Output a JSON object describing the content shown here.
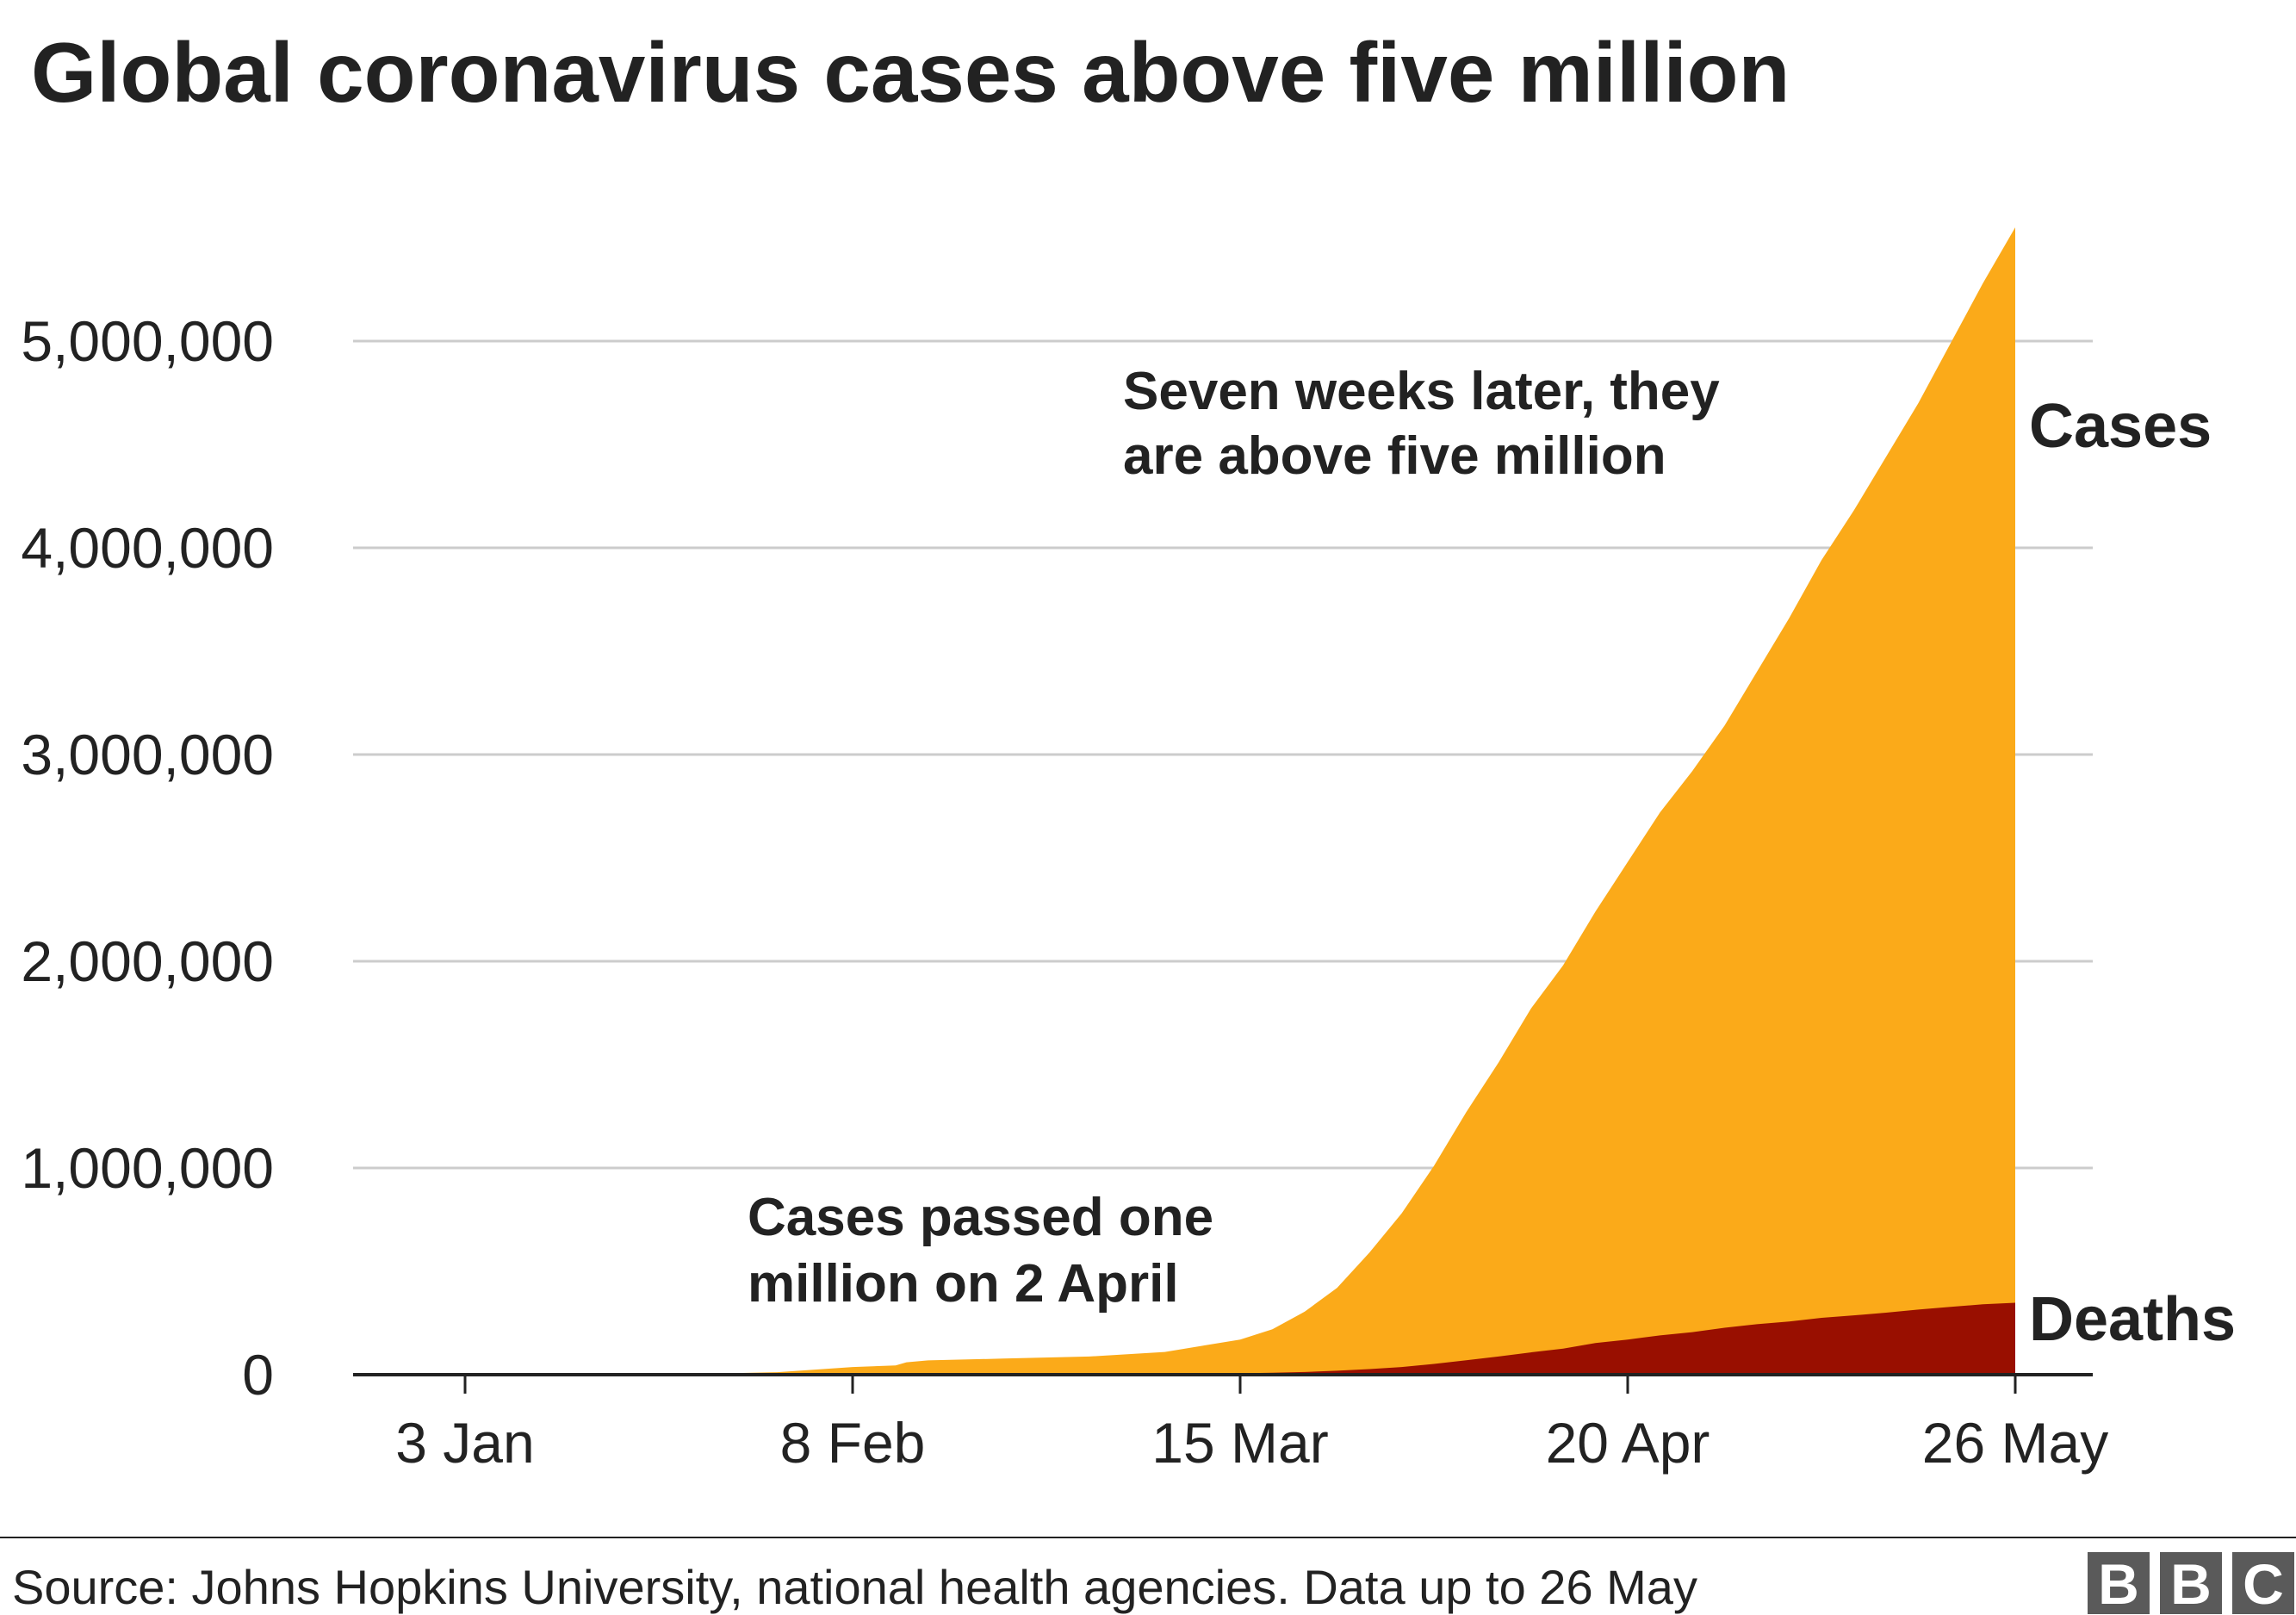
{
  "chart_data": {
    "type": "area",
    "title": "Global coronavirus cases above five million",
    "xlabel": "",
    "ylabel": "",
    "x_ticks": [
      "3 Jan",
      "8 Feb",
      "15 Mar",
      "20 Apr",
      "26 May"
    ],
    "y_ticks": [
      "0",
      "1,000,000",
      "2,000,000",
      "3,000,000",
      "4,000,000",
      "5,000,000"
    ],
    "y_tick_values": [
      0,
      1000000,
      2000000,
      3000000,
      4000000,
      5000000
    ],
    "ylim": [
      0,
      5600000
    ],
    "grid": true,
    "stacked": false,
    "dates": [
      "2020-01-03",
      "2020-01-22",
      "2020-02-01",
      "2020-02-08",
      "2020-02-12",
      "2020-02-13",
      "2020-02-15",
      "2020-02-22",
      "2020-03-01",
      "2020-03-08",
      "2020-03-15",
      "2020-03-18",
      "2020-03-21",
      "2020-03-24",
      "2020-03-27",
      "2020-03-30",
      "2020-04-02",
      "2020-04-05",
      "2020-04-08",
      "2020-04-11",
      "2020-04-14",
      "2020-04-17",
      "2020-04-20",
      "2020-04-23",
      "2020-04-26",
      "2020-04-29",
      "2020-05-02",
      "2020-05-05",
      "2020-05-08",
      "2020-05-11",
      "2020-05-14",
      "2020-05-17",
      "2020-05-20",
      "2020-05-23",
      "2020-05-26"
    ],
    "series": [
      {
        "name": "Cases",
        "color": "#fbaa19",
        "values": [
          0,
          600,
          12000,
          37000,
          45000,
          60000,
          69000,
          78000,
          88000,
          110000,
          170000,
          220000,
          305000,
          420000,
          590000,
          780000,
          1010000,
          1270000,
          1510000,
          1770000,
          1980000,
          2240000,
          2480000,
          2720000,
          2920000,
          3140000,
          3400000,
          3660000,
          3940000,
          4180000,
          4440000,
          4700000,
          4990000,
          5280000,
          5550000
        ]
      },
      {
        "name": "Deaths",
        "color": "#990f00",
        "values": [
          0,
          20,
          260,
          800,
          1400,
          1500,
          1700,
          2400,
          3000,
          3800,
          6500,
          9000,
          13000,
          19000,
          27000,
          37000,
          52000,
          70000,
          88000,
          108000,
          126000,
          153000,
          170000,
          190000,
          206000,
          227000,
          244000,
          257000,
          275000,
          287000,
          300000,
          315000,
          328000,
          341000,
          348000
        ]
      }
    ],
    "annotations": [
      {
        "lines": [
          "Cases passed one",
          "million on 2 April"
        ]
      },
      {
        "lines": [
          "Seven weeks later, they",
          "are above five million"
        ]
      }
    ],
    "series_labels": [
      "Cases",
      "Deaths"
    ]
  },
  "footer": {
    "source": "Source: Johns Hopkins University, national health agencies. Data up to 26 May",
    "logo": [
      "B",
      "B",
      "C"
    ]
  },
  "colors": {
    "text": "#222222",
    "grid": "#cccccc",
    "axis": "#222222",
    "logo_bg": "#5a5a5a"
  }
}
